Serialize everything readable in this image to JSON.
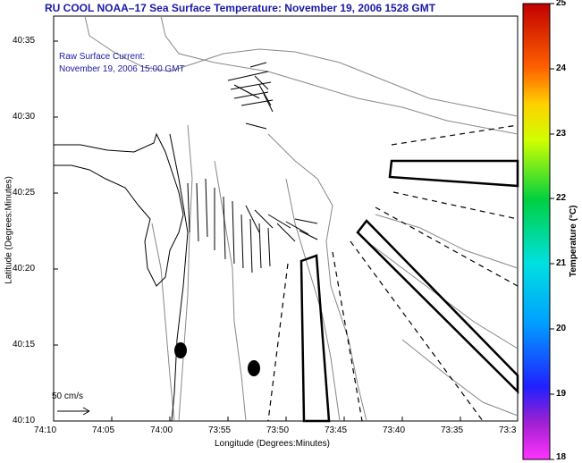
{
  "title": "RU COOL  NOAA–17  Sea Surface Temperature:  November 19, 2006 1528 GMT",
  "current_label": "Raw Surface Current:",
  "current_time": "November 19, 2006 15:00 GMT",
  "scale_label": "50 cm/s",
  "xlabel": "Longitude (Degrees:Minutes)",
  "ylabel": "Latitude (Degrees:Minutes)",
  "colorbar": {
    "label": "Temperature (°C)",
    "ticks": [
      "25",
      "24",
      "23",
      "22",
      "21",
      "20",
      "19",
      "18"
    ],
    "range": [
      18,
      25
    ]
  },
  "axes": {
    "x_ticks": [
      "74:10",
      "74:05",
      "74:00",
      "73:55",
      "73:50",
      "73:45",
      "73:40",
      "73:35",
      "73:3"
    ],
    "y_ticks": [
      "40:35",
      "40:30",
      "40:25",
      "40:20",
      "40:15",
      "40:10"
    ]
  }
}
